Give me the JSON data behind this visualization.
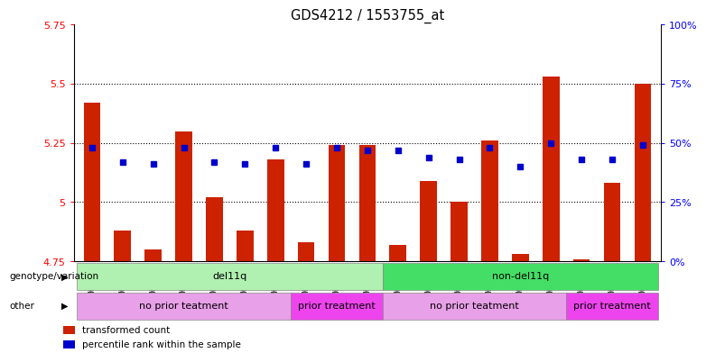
{
  "title": "GDS4212 / 1553755_at",
  "samples": [
    "GSM652229",
    "GSM652230",
    "GSM652232",
    "GSM652233",
    "GSM652234",
    "GSM652235",
    "GSM652236",
    "GSM652231",
    "GSM652237",
    "GSM652238",
    "GSM652241",
    "GSM652242",
    "GSM652243",
    "GSM652244",
    "GSM652245",
    "GSM652247",
    "GSM652239",
    "GSM652240",
    "GSM652246"
  ],
  "red_values": [
    5.42,
    4.88,
    4.8,
    5.3,
    5.02,
    4.88,
    5.18,
    4.83,
    5.24,
    5.24,
    4.82,
    5.09,
    5.0,
    5.26,
    4.78,
    5.53,
    4.76,
    5.08,
    5.5
  ],
  "blue_values": [
    48,
    42,
    41,
    48,
    42,
    41,
    48,
    41,
    48,
    47,
    47,
    44,
    43,
    48,
    40,
    50,
    43,
    43,
    49
  ],
  "ylim_left": [
    4.75,
    5.75
  ],
  "ylim_right": [
    0,
    100
  ],
  "yticks_left": [
    4.75,
    5.0,
    5.25,
    5.5,
    5.75
  ],
  "ytick_labels_left": [
    "4.75",
    "5",
    "5.25",
    "5.5",
    "5.75"
  ],
  "ytick_labels_right": [
    "0%",
    "25%",
    "50%",
    "75%",
    "100%"
  ],
  "hlines": [
    5.0,
    5.25,
    5.5
  ],
  "genotype_groups": [
    {
      "label": "del11q",
      "start": 0,
      "end": 10,
      "color": "#b0f0b0"
    },
    {
      "label": "non-del11q",
      "start": 10,
      "end": 19,
      "color": "#44dd66"
    }
  ],
  "other_groups": [
    {
      "label": "no prior teatment",
      "start": 0,
      "end": 7,
      "color": "#e8a0e8"
    },
    {
      "label": "prior treatment",
      "start": 7,
      "end": 10,
      "color": "#ee44ee"
    },
    {
      "label": "no prior teatment",
      "start": 10,
      "end": 16,
      "color": "#e8a0e8"
    },
    {
      "label": "prior treatment",
      "start": 16,
      "end": 19,
      "color": "#ee44ee"
    }
  ],
  "bar_color": "#cc2200",
  "dot_color": "#0000cc",
  "base_value": 4.75,
  "legend_red_label": "transformed count",
  "legend_blue_label": "percentile rank within the sample",
  "genotype_label": "genotype/variation",
  "other_label": "other",
  "bg_color": "#e8e8e8"
}
